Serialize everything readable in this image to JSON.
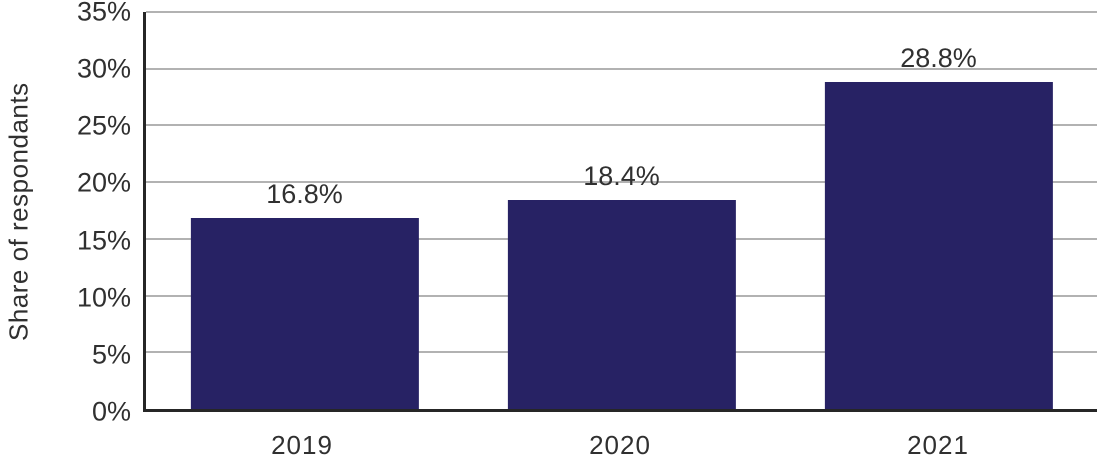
{
  "chart_data": {
    "type": "bar",
    "categories": [
      "2019",
      "2020",
      "2021"
    ],
    "values": [
      16.8,
      18.4,
      28.8
    ],
    "value_labels": [
      "16.8%",
      "18.4%",
      "28.8%"
    ],
    "title": "",
    "xlabel": "",
    "ylabel": "Share of respondants",
    "ylim": [
      0,
      35
    ],
    "ytick_step": 5,
    "ytick_labels": [
      "0%",
      "5%",
      "10%",
      "15%",
      "20%",
      "25%",
      "30%",
      "35%"
    ],
    "grid": true,
    "legend": false,
    "colors": {
      "bar": "#272264",
      "gridline": "#b2b2b2",
      "axis": "#262626",
      "text": "#303030"
    }
  }
}
